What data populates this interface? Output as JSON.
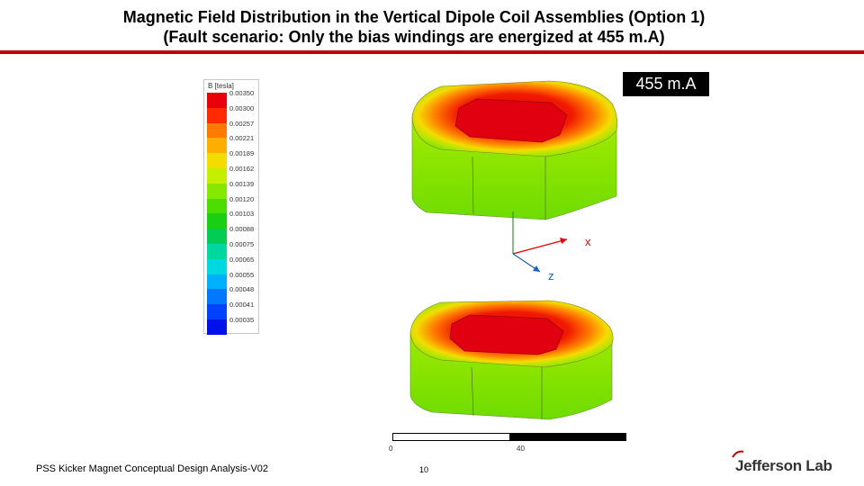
{
  "title": {
    "line1": "Magnetic Field Distribution in the  Vertical Dipole Coil Assemblies (Option 1)",
    "line2": "(Fault scenario: Only the bias windings are energized at 455 m.A)"
  },
  "badge": "455 m.A",
  "legend": {
    "title": "B [tesla]",
    "entries": [
      {
        "value": "0.00350",
        "color": "#e8000a"
      },
      {
        "value": "0.00300",
        "color": "#ff2a00"
      },
      {
        "value": "0.00257",
        "color": "#ff7a00"
      },
      {
        "value": "0.00221",
        "color": "#ffae00"
      },
      {
        "value": "0.00189",
        "color": "#f4dc00"
      },
      {
        "value": "0.00162",
        "color": "#c6ee00"
      },
      {
        "value": "0.00139",
        "color": "#86e800"
      },
      {
        "value": "0.00120",
        "color": "#4cdc00"
      },
      {
        "value": "0.00103",
        "color": "#19cf14"
      },
      {
        "value": "0.00088",
        "color": "#00cc55"
      },
      {
        "value": "0.00075",
        "color": "#00d6a0"
      },
      {
        "value": "0.00065",
        "color": "#00d8e0"
      },
      {
        "value": "0.00055",
        "color": "#00b0ff"
      },
      {
        "value": "0.00048",
        "color": "#0078ff"
      },
      {
        "value": "0.00041",
        "color": "#0040ff"
      },
      {
        "value": "0.00035",
        "color": "#0010e8"
      }
    ]
  },
  "axes": {
    "x": "x",
    "z": "z"
  },
  "scale": {
    "start": "0",
    "end": "40"
  },
  "footer": "PSS Kicker Magnet Conceptual Design Analysis-V02",
  "page_number": "10",
  "logo": "Jefferson Lab",
  "colors": {
    "rule": "#c00000",
    "field_max": "#e8000a",
    "field_mid": "#7fe000"
  }
}
